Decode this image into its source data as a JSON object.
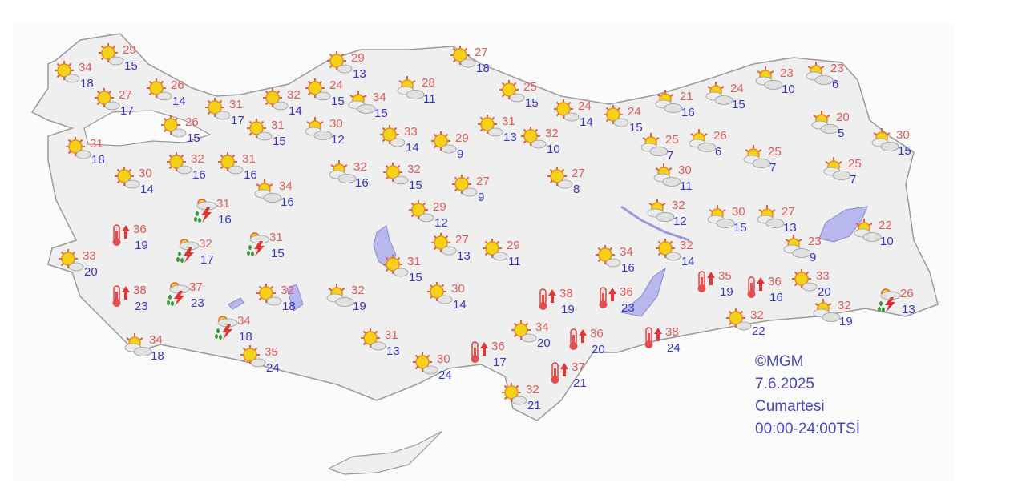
{
  "map": {
    "land_color": "#efefef",
    "border_color": "#9a9a9a",
    "water_color": "#b8b8ee",
    "high_color": "#e05a5a",
    "low_color": "#3636c4",
    "icon_types": {
      "S": "sunny-icon",
      "P": "partly-cloudy-icon",
      "T": "thunderstorm-icon",
      "H": "hot-icon"
    },
    "stations": [
      {
        "icon": "S",
        "high": "34",
        "low": "18"
      },
      {
        "icon": "S",
        "high": "29",
        "low": "15"
      },
      {
        "icon": "S",
        "high": "27",
        "low": "17"
      },
      {
        "icon": "S",
        "high": "26",
        "low": "14"
      },
      {
        "icon": "S",
        "high": "31",
        "low": "17"
      },
      {
        "icon": "S",
        "high": "26",
        "low": "15"
      },
      {
        "icon": "S",
        "high": "31",
        "low": "18"
      },
      {
        "icon": "S",
        "high": "30",
        "low": "14"
      },
      {
        "icon": "S",
        "high": "32",
        "low": "16"
      },
      {
        "icon": "S",
        "high": "31",
        "low": "16"
      },
      {
        "icon": "P",
        "high": "34",
        "low": "16"
      },
      {
        "icon": "T",
        "high": "31",
        "low": "16"
      },
      {
        "icon": "H",
        "high": "36",
        "low": "19"
      },
      {
        "icon": "S",
        "high": "33",
        "low": "20"
      },
      {
        "icon": "T",
        "high": "32",
        "low": "17"
      },
      {
        "icon": "T",
        "high": "31",
        "low": "15"
      },
      {
        "icon": "H",
        "high": "38",
        "low": "23"
      },
      {
        "icon": "T",
        "high": "37",
        "low": "23"
      },
      {
        "icon": "S",
        "high": "32",
        "low": "18"
      },
      {
        "icon": "P",
        "high": "32",
        "low": "19"
      },
      {
        "icon": "T",
        "high": "34",
        "low": "18"
      },
      {
        "icon": "P",
        "high": "34",
        "low": "18"
      },
      {
        "icon": "S",
        "high": "35",
        "low": "24"
      },
      {
        "icon": "S",
        "high": "32",
        "low": "14"
      },
      {
        "icon": "S",
        "high": "24",
        "low": "15"
      },
      {
        "icon": "S",
        "high": "29",
        "low": "13"
      },
      {
        "icon": "P",
        "high": "34",
        "low": "15"
      },
      {
        "icon": "P",
        "high": "28",
        "low": "11"
      },
      {
        "icon": "S",
        "high": "31",
        "low": "15"
      },
      {
        "icon": "P",
        "high": "30",
        "low": "12"
      },
      {
        "icon": "S",
        "high": "33",
        "low": "14"
      },
      {
        "icon": "S",
        "high": "29",
        "low": "9"
      },
      {
        "icon": "P",
        "high": "32",
        "low": "16"
      },
      {
        "icon": "S",
        "high": "32",
        "low": "15"
      },
      {
        "icon": "S",
        "high": "27",
        "low": "9"
      },
      {
        "icon": "S",
        "high": "29",
        "low": "12"
      },
      {
        "icon": "S",
        "high": "27",
        "low": "13"
      },
      {
        "icon": "S",
        "high": "29",
        "low": "11"
      },
      {
        "icon": "S",
        "high": "31",
        "low": "15"
      },
      {
        "icon": "S",
        "high": "30",
        "low": "14"
      },
      {
        "icon": "S",
        "high": "31",
        "low": "13"
      },
      {
        "icon": "S",
        "high": "30",
        "low": "24"
      },
      {
        "icon": "H",
        "high": "36",
        "low": "17"
      },
      {
        "icon": "S",
        "high": "34",
        "low": "20"
      },
      {
        "icon": "H",
        "high": "38",
        "low": "19"
      },
      {
        "icon": "H",
        "high": "36",
        "low": "20"
      },
      {
        "icon": "H",
        "high": "37",
        "low": "21"
      },
      {
        "icon": "S",
        "high": "32",
        "low": "21"
      },
      {
        "icon": "S",
        "high": "27",
        "low": "18"
      },
      {
        "icon": "S",
        "high": "25",
        "low": "15"
      },
      {
        "icon": "S",
        "high": "31",
        "low": "13"
      },
      {
        "icon": "S",
        "high": "32",
        "low": "10"
      },
      {
        "icon": "S",
        "high": "24",
        "low": "14"
      },
      {
        "icon": "S",
        "high": "24",
        "low": "15"
      },
      {
        "icon": "S",
        "high": "27",
        "low": "8"
      },
      {
        "icon": "S",
        "high": "34",
        "low": "16"
      },
      {
        "icon": "H",
        "high": "36",
        "low": "23"
      },
      {
        "icon": "H",
        "high": "38",
        "low": "24"
      },
      {
        "icon": "P",
        "high": "21",
        "low": "16"
      },
      {
        "icon": "P",
        "high": "24",
        "low": "15"
      },
      {
        "icon": "P",
        "high": "25",
        "low": "7"
      },
      {
        "icon": "P",
        "high": "26",
        "low": "6"
      },
      {
        "icon": "P",
        "high": "30",
        "low": "11"
      },
      {
        "icon": "P",
        "high": "32",
        "low": "12"
      },
      {
        "icon": "S",
        "high": "32",
        "low": "14"
      },
      {
        "icon": "H",
        "high": "35",
        "low": "19"
      },
      {
        "icon": "P",
        "high": "30",
        "low": "15"
      },
      {
        "icon": "P",
        "high": "27",
        "low": "13"
      },
      {
        "icon": "P",
        "high": "23",
        "low": "10"
      },
      {
        "icon": "P",
        "high": "23",
        "low": "6"
      },
      {
        "icon": "P",
        "high": "20",
        "low": "5"
      },
      {
        "icon": "P",
        "high": "30",
        "low": "15"
      },
      {
        "icon": "P",
        "high": "25",
        "low": "7"
      },
      {
        "icon": "P",
        "high": "25",
        "low": "7"
      },
      {
        "icon": "P",
        "high": "23",
        "low": "9"
      },
      {
        "icon": "P",
        "high": "22",
        "low": "10"
      },
      {
        "icon": "H",
        "high": "36",
        "low": "16"
      },
      {
        "icon": "S",
        "high": "33",
        "low": "20"
      },
      {
        "icon": "S",
        "high": "32",
        "low": "22"
      },
      {
        "icon": "P",
        "high": "32",
        "low": "19"
      },
      {
        "icon": "T",
        "high": "26",
        "low": "13"
      }
    ]
  },
  "legend": {
    "source": "©MGM",
    "date": "7.6.2025",
    "day": "Cumartesi",
    "period": "00:00-24:00TSİ"
  }
}
